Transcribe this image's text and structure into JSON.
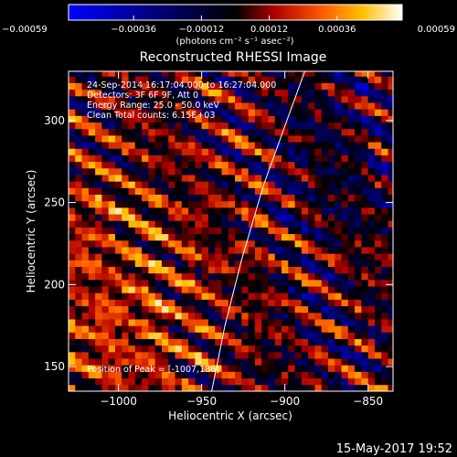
{
  "chart_data": {
    "type": "heatmap",
    "title": "Reconstructed RHESSI Image",
    "xlabel": "Heliocentric X (arcsec)",
    "ylabel": "Heliocentric Y (arcsec)",
    "xlim": [
      -1030,
      -835
    ],
    "ylim": [
      135,
      330
    ],
    "x_ticks": [
      -1000,
      -950,
      -900,
      -850
    ],
    "x_tick_labels": [
      "−1000",
      "−950",
      "−900",
      "−850"
    ],
    "y_ticks": [
      150,
      200,
      250,
      300
    ],
    "y_tick_labels": [
      "150",
      "200",
      "250",
      "300"
    ],
    "colorbar": {
      "ticks": [
        -0.00059,
        -0.00036,
        -0.00012,
        0.00012,
        0.00036,
        0.00059
      ],
      "tick_labels": [
        "−0.00059",
        "−0.00036",
        "−0.00012",
        "0.00012",
        "0.00036",
        "0.00059"
      ],
      "range": [
        -0.00059,
        0.00059
      ],
      "units": "(photons cm⁻² s⁻¹ asec⁻²)"
    },
    "annotations": [
      "24-Sep-2014 16:17:04.000 to 16:27:04.000",
      "Detectors: 3F 6F 9F, Att 0",
      "Energy Range: 25.0 - 50.0 keV",
      "Clean    Total counts: 6.15E+03"
    ],
    "peak_label": "Position of Peak = [-1007,186]",
    "peak": [
      -1007,
      186
    ],
    "limb_curve": [
      [
        -944,
        135
      ],
      [
        -936,
        175
      ],
      [
        -926,
        215
      ],
      [
        -913,
        260
      ],
      [
        -897,
        305
      ],
      [
        -888,
        330
      ]
    ],
    "grid": false
  },
  "footer": {
    "timestamp": "15-May-2017 19:52"
  },
  "colors": {
    "background": "#000000",
    "foreground": "#ffffff"
  }
}
